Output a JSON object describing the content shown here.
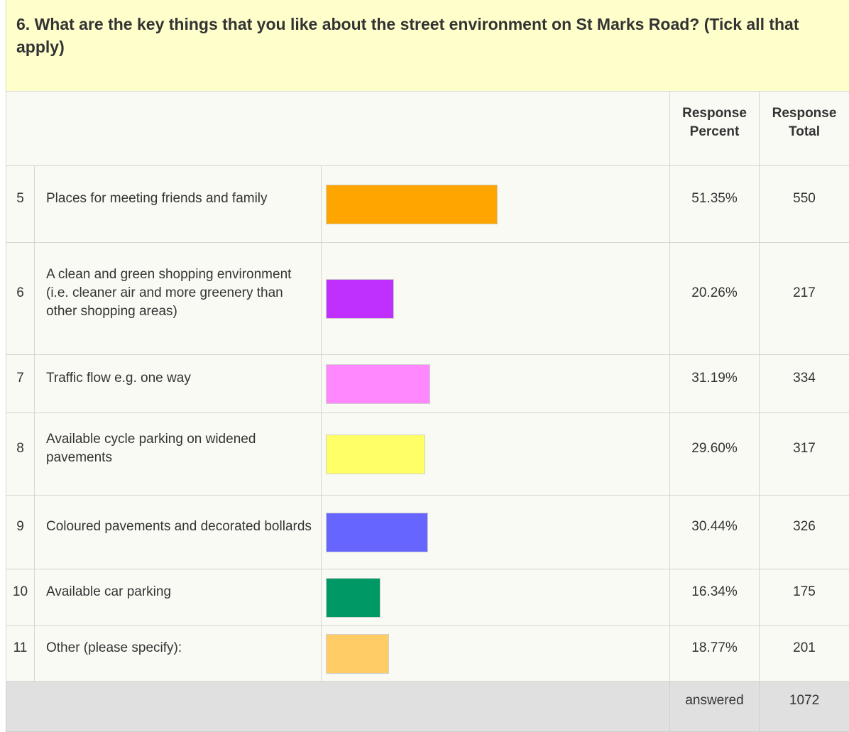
{
  "question": "6. What are the key things that you like about the street environment on St Marks Road? (Tick all that apply)",
  "table": {
    "headers": [
      "Response Percent",
      "Response Total"
    ],
    "rows": [
      {
        "number": 5,
        "label": "Places for meeting friends and family",
        "percent": {
          "value": 51.35,
          "label": "51.35%"
        },
        "total": 550,
        "color": "#ffa500"
      },
      {
        "number": 6,
        "label": "A clean and green shopping environment (i.e. cleaner air and more greenery than other shopping areas)",
        "percent": {
          "value": 20.26,
          "label": "20.26%"
        },
        "total": 217,
        "color": "#bf30ff"
      },
      {
        "number": 7,
        "label": "Traffic flow e.g. one way",
        "percent": {
          "value": 31.19,
          "label": "31.19%"
        },
        "total": 334,
        "color": "#ff88ff"
      },
      {
        "number": 8,
        "label": "Available cycle parking on widened pavements",
        "percent": {
          "value": 29.6,
          "label": "29.60%"
        },
        "total": 317,
        "color": "#ffff66"
      },
      {
        "number": 9,
        "label": "Coloured pavements and decorated bollards",
        "percent": {
          "value": 30.44,
          "label": "30.44%"
        },
        "total": 326,
        "color": "#6666ff"
      },
      {
        "number": 10,
        "label": "Available car parking",
        "percent": {
          "value": 16.34,
          "label": "16.34%"
        },
        "total": 175,
        "color": "#009966"
      },
      {
        "number": 11,
        "label": "Other (please specify):",
        "percent": {
          "value": 18.77,
          "label": "18.77%"
        },
        "total": 201,
        "color": "#ffcc66"
      }
    ],
    "footer": {
      "label": "answered",
      "total": 1072
    }
  }
}
